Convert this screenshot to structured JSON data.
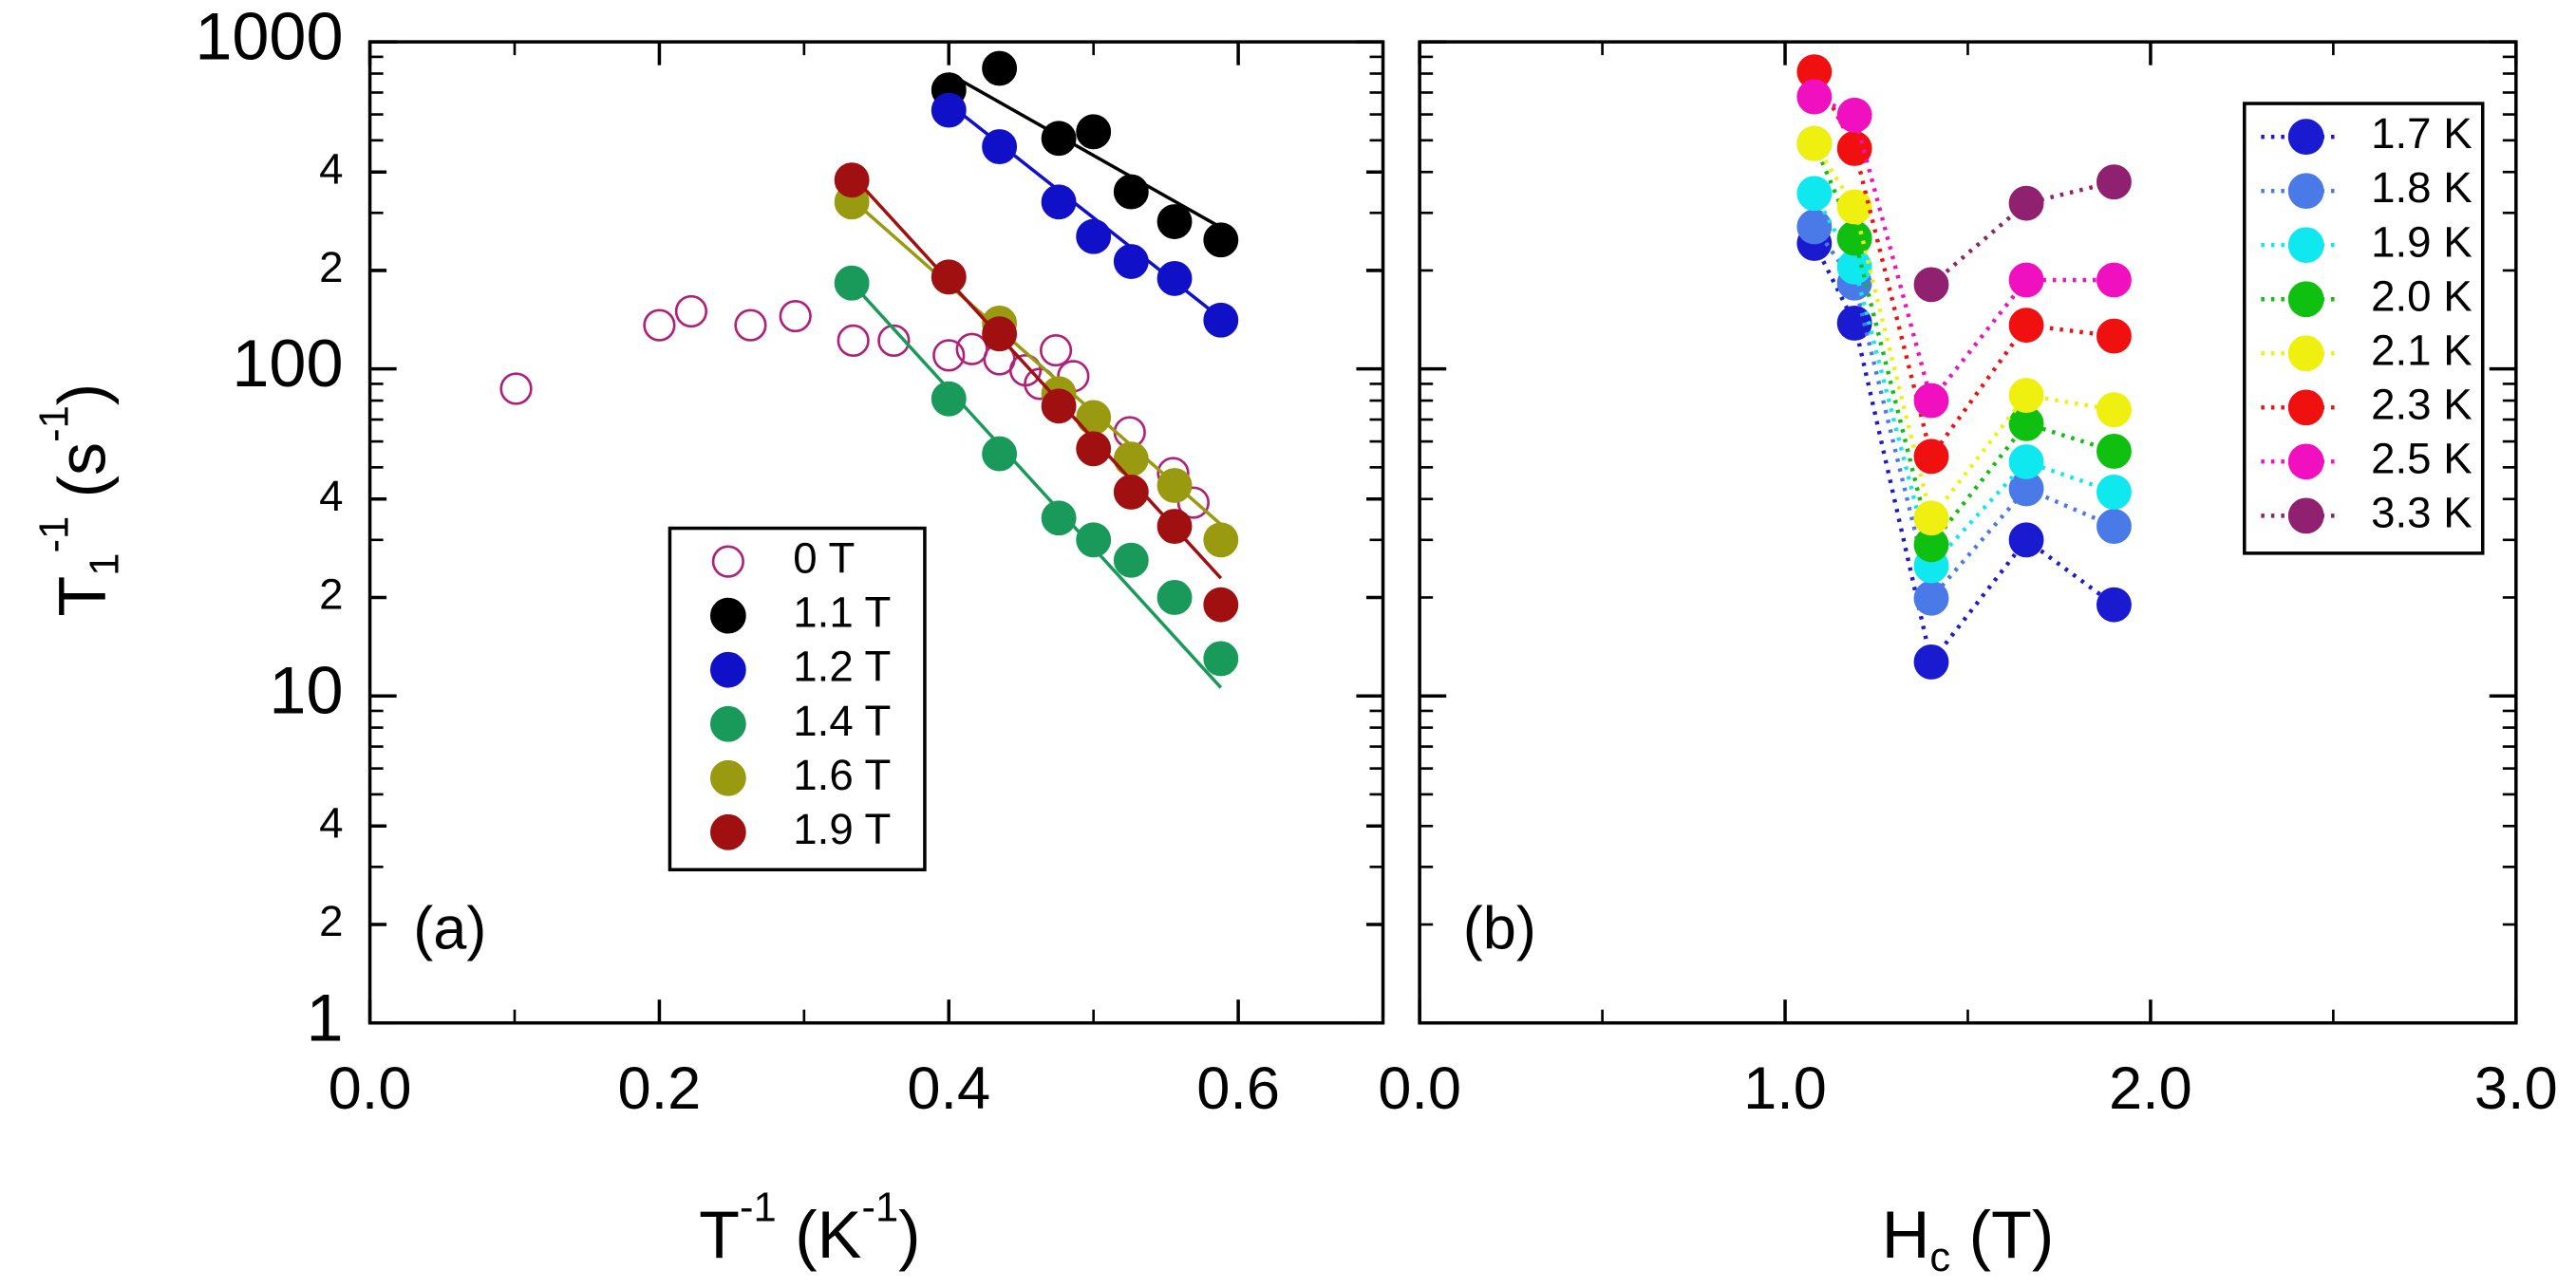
{
  "chart_data": [
    {
      "type": "scatter",
      "panel_label": "(a)",
      "yscale": "log",
      "legend": "lower center",
      "xlabel": [
        {
          "text": "T"
        },
        {
          "text": "-1",
          "shift": "sup"
        },
        {
          "text": "  (K"
        },
        {
          "text": "-1",
          "shift": "sup"
        },
        {
          "text": ")"
        }
      ],
      "ylabel": [
        {
          "text": "T"
        },
        {
          "text": "1",
          "shift": "sub"
        },
        {
          "text": "-1",
          "shift": "sup"
        },
        {
          "text": " (s"
        },
        {
          "text": "-1",
          "shift": "sup"
        },
        {
          "text": ")"
        }
      ],
      "xlim": [
        0,
        0.7
      ],
      "xticks": [
        {
          "value": 0,
          "label": "0.0"
        },
        0.2,
        0.4,
        0.6
      ],
      "ylim": [
        1,
        1000
      ],
      "yticks": [
        1,
        {
          "value": 2,
          "label": "2"
        },
        {
          "value": 4,
          "label": "4"
        },
        10,
        {
          "value": 20,
          "label": "2"
        },
        {
          "value": 40,
          "label": "4"
        },
        100,
        {
          "value": 200,
          "label": "2"
        },
        {
          "value": 400,
          "label": "4"
        },
        1000
      ],
      "series": [
        {
          "name": "0 T",
          "color": "#b0207a",
          "marker": "open",
          "x": [
            0.101,
            0.2,
            0.222,
            0.263,
            0.294,
            0.334,
            0.362,
            0.4,
            0.416,
            0.435,
            0.453,
            0.463,
            0.474,
            0.486,
            0.5,
            0.525,
            0.555,
            0.569
          ],
          "values": [
            87,
            136,
            150,
            136,
            145,
            122,
            122,
            110,
            115,
            107,
            99,
            90,
            114,
            95,
            71,
            64,
            48,
            39
          ]
        },
        {
          "name": "1.1 T",
          "color": "#000000",
          "marker": "filled",
          "x": [
            0.4,
            0.435,
            0.476,
            0.5,
            0.526,
            0.556,
            0.588
          ],
          "values": [
            713,
            830,
            507,
            531,
            348,
            282,
            248
          ],
          "fit": {
            "x": [
              0.4,
              0.595
            ],
            "values": [
              800,
              260
            ]
          }
        },
        {
          "name": "1.2 T",
          "color": "#1010c8",
          "marker": "filled",
          "x": [
            0.4,
            0.435,
            0.476,
            0.5,
            0.526,
            0.556,
            0.588
          ],
          "values": [
            618,
            478,
            324,
            254,
            213,
            189,
            141
          ],
          "fit": {
            "x": [
              0.4,
              0.595
            ],
            "values": [
              647,
              135
            ]
          }
        },
        {
          "name": "1.4 T",
          "color": "#1a9a5a",
          "marker": "filled",
          "x": [
            0.333,
            0.4,
            0.435,
            0.476,
            0.5,
            0.526,
            0.556,
            0.588
          ],
          "values": [
            183,
            81,
            55,
            35,
            30,
            26,
            20,
            13
          ],
          "fit": {
            "x": [
              0.333,
              0.588
            ],
            "values": [
              183,
              10.6
            ]
          }
        },
        {
          "name": "1.6 T",
          "color": "#9a9a10",
          "marker": "filled",
          "x": [
            0.333,
            0.435,
            0.476,
            0.5,
            0.526,
            0.556,
            0.588
          ],
          "values": [
            324,
            138,
            84,
            71,
            53,
            44,
            30
          ],
          "fit": {
            "x": [
              0.333,
              0.595
            ],
            "values": [
              330,
              31.4
            ]
          }
        },
        {
          "name": "1.9 T",
          "color": "#a01010",
          "marker": "filled",
          "x": [
            0.333,
            0.4,
            0.435,
            0.476,
            0.5,
            0.526,
            0.556,
            0.588
          ],
          "values": [
            378,
            191,
            128,
            77,
            57,
            42,
            33,
            19
          ],
          "fit": {
            "x": [
              0.333,
              0.588
            ],
            "values": [
              392,
              22.9
            ]
          }
        }
      ]
    },
    {
      "type": "line",
      "panel_label": "(b)",
      "yscale": "log",
      "legend": "upper right",
      "line_style": "dotted",
      "xlabel": [
        {
          "text": "H"
        },
        {
          "text": "c",
          "shift": "sub"
        },
        {
          "text": " (T)"
        }
      ],
      "xlim": [
        0,
        3
      ],
      "xticks": [
        {
          "value": 0,
          "label": "0.0"
        },
        {
          "value": 1,
          "label": "1.0"
        },
        {
          "value": 2,
          "label": "2.0"
        },
        {
          "value": 3,
          "label": "3.0"
        }
      ],
      "ylim": [
        1,
        1000
      ],
      "yticks": [
        1,
        10,
        100,
        1000
      ],
      "show_ytick_labels": false,
      "x": [
        1.08,
        1.19,
        1.4,
        1.66,
        1.9
      ],
      "series": [
        {
          "name": "1.7 K",
          "color": "#1a1ad0",
          "values": [
            242,
            138,
            12.7,
            30,
            19
          ]
        },
        {
          "name": "1.8 K",
          "color": "#4a7ae8",
          "values": [
            272,
            183,
            19.9,
            43,
            33
          ]
        },
        {
          "name": "1.9 K",
          "color": "#10e8f0",
          "values": [
            344,
            205,
            25,
            52,
            42
          ]
        },
        {
          "name": "2.0 K",
          "color": "#10c010",
          "values": [
            489,
            251,
            29,
            68,
            56
          ]
        },
        {
          "name": "2.1 K",
          "color": "#f0f010",
          "values": [
            489,
            313,
            35,
            83,
            75
          ]
        },
        {
          "name": "2.3 K",
          "color": "#f01010",
          "values": [
            810,
            472,
            54,
            136,
            126
          ]
        },
        {
          "name": "2.5 K",
          "color": "#f010c0",
          "values": [
            679,
            597,
            80,
            187,
            187
          ]
        },
        {
          "name": "3.3 K",
          "color": "#902070",
          "values": [
            null,
            null,
            181,
            321,
            373
          ]
        }
      ]
    }
  ]
}
